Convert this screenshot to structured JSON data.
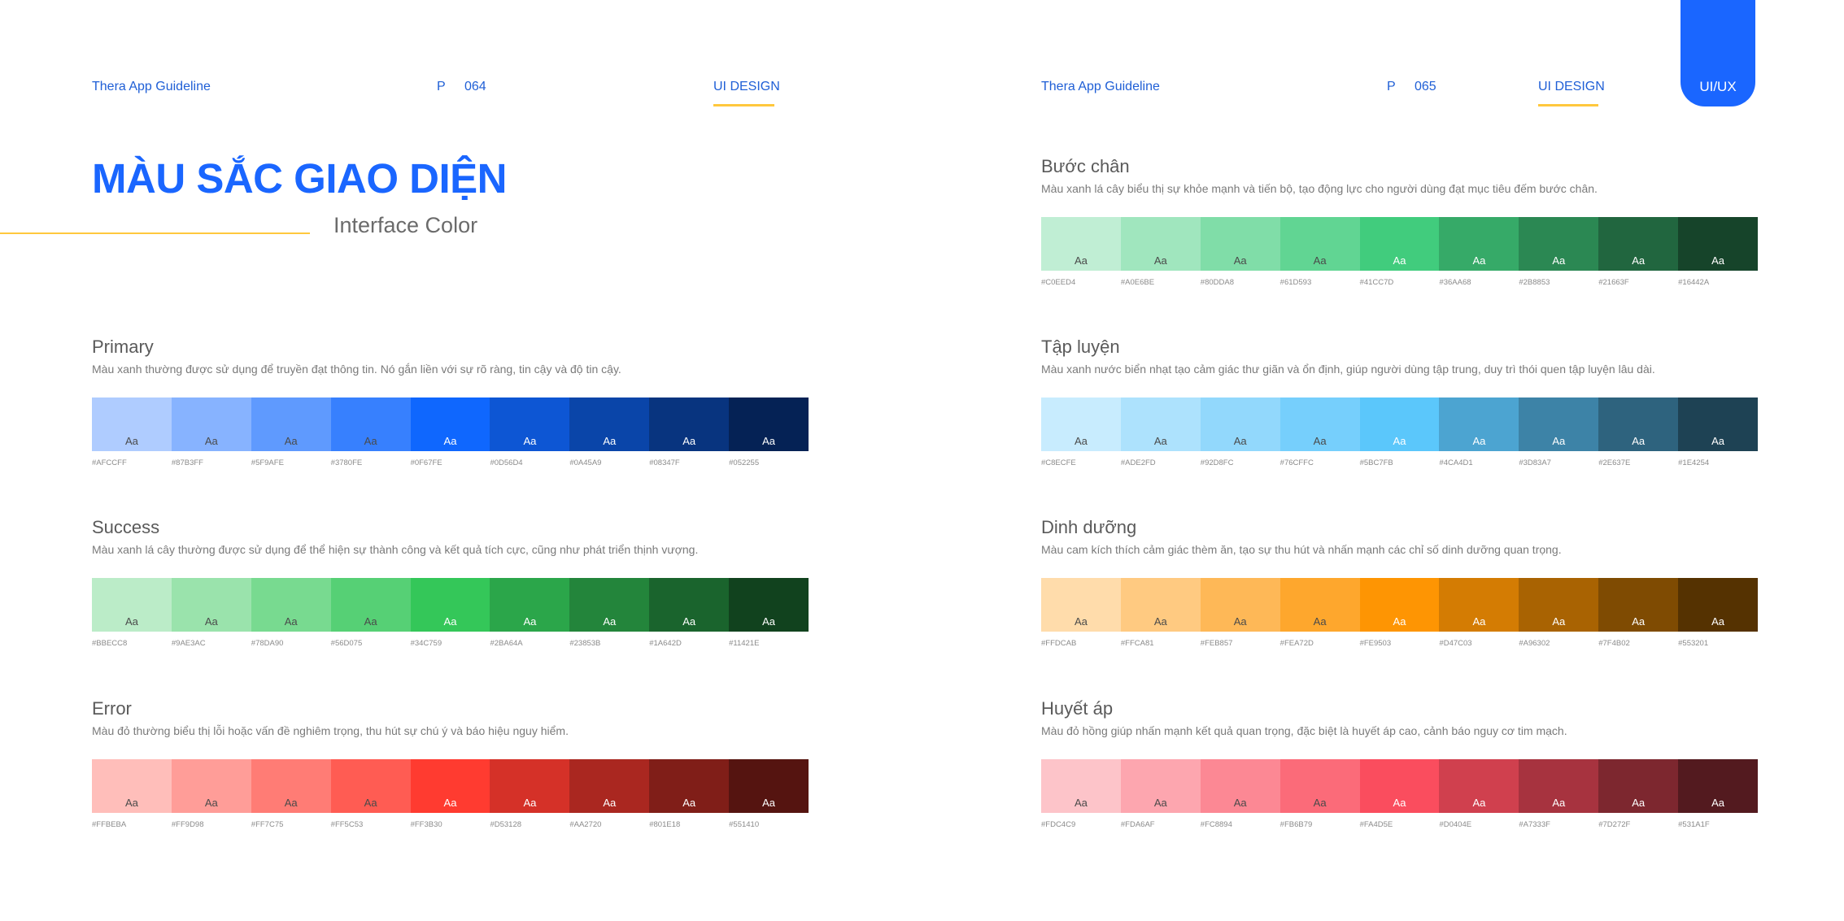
{
  "left_page": {
    "guideline": "Thera App Guideline",
    "page_prefix": "P",
    "page_number": "064",
    "section": "UI DESIGN",
    "title": "MÀU SẮC GIAO DIỆN",
    "subtitle": "Interface Color"
  },
  "right_page": {
    "guideline": "Thera App Guideline",
    "page_prefix": "P",
    "page_number": "065",
    "section": "UI DESIGN",
    "tab": "UI/UX"
  },
  "swatch_label": "Aa",
  "colors": {
    "accent_blue": "#1A66FF",
    "accent_yellow": "#FFC83D",
    "header_blue": "#1F5FD6"
  },
  "palettes": [
    {
      "name": "Primary",
      "description": "Màu xanh thường được sử dụng để truyền đạt thông tin. Nó gắn liền với sự rõ ràng, tin cậy và độ tin cậy.",
      "swatches": [
        "#AFCCFF",
        "#87B3FF",
        "#5F9AFE",
        "#3780FE",
        "#0F67FE",
        "#0D56D4",
        "#0A45A9",
        "#08347F",
        "#052255"
      ],
      "text_colors": [
        "#4a4a4a",
        "#4a4a4a",
        "#4a4a4a",
        "#4a4a4a",
        "#ffffff",
        "#ffffff",
        "#ffffff",
        "#ffffff",
        "#ffffff"
      ]
    },
    {
      "name": "Success",
      "description": "Màu xanh lá cây thường được sử dụng để thể hiện sự thành công và kết quả tích cực, cũng như phát triển thịnh vượng.",
      "swatches": [
        "#BBECC8",
        "#9AE3AC",
        "#78DA90",
        "#56D075",
        "#34C759",
        "#2BA64A",
        "#23853B",
        "#1A642D",
        "#11421E"
      ],
      "text_colors": [
        "#4a4a4a",
        "#4a4a4a",
        "#4a4a4a",
        "#4a4a4a",
        "#ffffff",
        "#ffffff",
        "#ffffff",
        "#ffffff",
        "#ffffff"
      ]
    },
    {
      "name": "Error",
      "description": "Màu đỏ thường biểu thị lỗi hoặc vấn đề nghiêm trọng, thu hút sự chú ý và báo hiệu nguy hiểm.",
      "swatches": [
        "#FFBEBA",
        "#FF9D98",
        "#FF7C75",
        "#FF5C53",
        "#FF3B30",
        "#D53128",
        "#AA2720",
        "#801E18",
        "#551410"
      ],
      "text_colors": [
        "#4a4a4a",
        "#4a4a4a",
        "#4a4a4a",
        "#4a4a4a",
        "#ffffff",
        "#ffffff",
        "#ffffff",
        "#ffffff",
        "#ffffff"
      ]
    },
    {
      "name": "Bước chân",
      "description": "Màu xanh lá cây biểu thị sự khỏe mạnh và tiến bộ, tạo động lực cho người dùng đạt mục tiêu đếm bước chân.",
      "swatches": [
        "#C0EED4",
        "#A0E6BE",
        "#80DDA8",
        "#61D593",
        "#41CC7D",
        "#36AA68",
        "#2B8853",
        "#21663F",
        "#16442A"
      ],
      "text_colors": [
        "#4a4a4a",
        "#4a4a4a",
        "#4a4a4a",
        "#4a4a4a",
        "#ffffff",
        "#ffffff",
        "#ffffff",
        "#ffffff",
        "#ffffff"
      ]
    },
    {
      "name": "Tập luyện",
      "description": "Màu xanh nước biển nhạt tạo cảm giác thư giãn và ổn định, giúp người dùng tập trung, duy trì thói quen tập luyện lâu dài.",
      "swatches": [
        "#C8ECFE",
        "#ADE2FD",
        "#92D8FC",
        "#76CFFC",
        "#5BC7FB",
        "#4CA4D1",
        "#3D83A7",
        "#2E637E",
        "#1E4254"
      ],
      "text_colors": [
        "#4a4a4a",
        "#4a4a4a",
        "#4a4a4a",
        "#4a4a4a",
        "#ffffff",
        "#ffffff",
        "#ffffff",
        "#ffffff",
        "#ffffff"
      ]
    },
    {
      "name": "Dinh dưỡng",
      "description": "Màu cam kích thích cảm giác thèm ăn, tạo sự thu hút và nhấn mạnh các chỉ số dinh dưỡng quan trọng.",
      "swatches": [
        "#FFDCAB",
        "#FFCA81",
        "#FEB857",
        "#FEA72D",
        "#FE9503",
        "#D47C03",
        "#A96302",
        "#7F4B02",
        "#553201"
      ],
      "text_colors": [
        "#4a4a4a",
        "#4a4a4a",
        "#4a4a4a",
        "#4a4a4a",
        "#ffffff",
        "#ffffff",
        "#ffffff",
        "#ffffff",
        "#ffffff"
      ]
    },
    {
      "name": "Huyết áp",
      "description": "Màu đỏ hồng giúp nhấn mạnh kết quả quan trọng, đặc biệt là huyết áp cao, cảnh báo nguy cơ tim mạch.",
      "swatches": [
        "#FDC4C9",
        "#FDA6AF",
        "#FC8894",
        "#FB6B79",
        "#FA4D5E",
        "#D0404E",
        "#A7333F",
        "#7D272F",
        "#531A1F"
      ],
      "text_colors": [
        "#4a4a4a",
        "#4a4a4a",
        "#4a4a4a",
        "#4a4a4a",
        "#ffffff",
        "#ffffff",
        "#ffffff",
        "#ffffff",
        "#ffffff"
      ]
    }
  ]
}
